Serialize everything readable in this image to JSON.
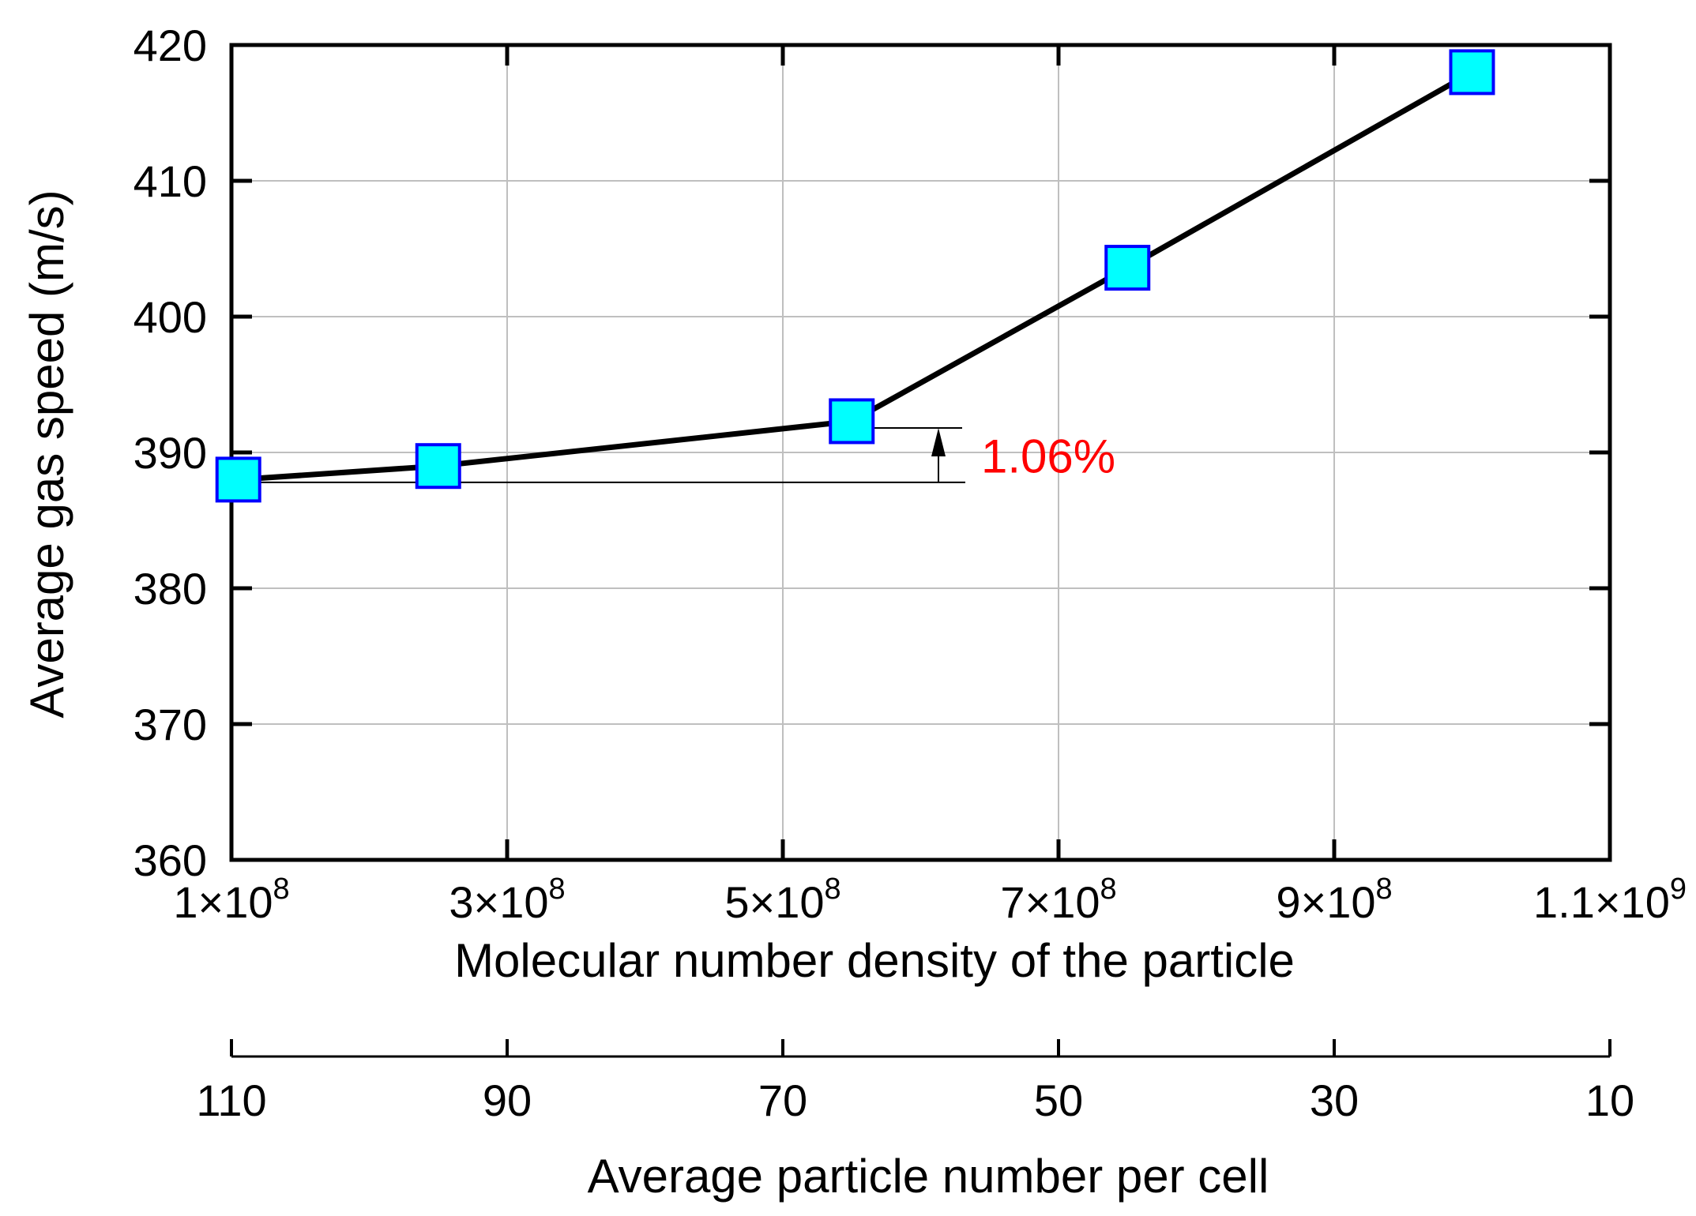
{
  "chart_data": {
    "type": "line",
    "title": "",
    "xlabel": "Molecular number density of the particle",
    "ylabel": "Average gas speed (m/s)",
    "secondary_xlabel": "Average particle number per cell",
    "xlim": [
      100000000,
      1100000000
    ],
    "ylim": [
      360,
      420
    ],
    "grid": true,
    "x_ticks": [
      100000000,
      300000000,
      500000000,
      700000000,
      900000000,
      1100000000
    ],
    "x_tick_labels": [
      {
        "mantissa": "1×10",
        "exp": "8"
      },
      {
        "mantissa": "3×10",
        "exp": "8"
      },
      {
        "mantissa": "5×10",
        "exp": "8"
      },
      {
        "mantissa": "7×10",
        "exp": "8"
      },
      {
        "mantissa": "9×10",
        "exp": "8"
      },
      {
        "mantissa": "1.1×10",
        "exp": "9"
      }
    ],
    "y_ticks": [
      360,
      370,
      380,
      390,
      400,
      410,
      420
    ],
    "y_tick_labels": [
      "360",
      "370",
      "380",
      "390",
      "400",
      "410",
      "420"
    ],
    "secondary_x_ticks": [
      110,
      90,
      70,
      50,
      30,
      10
    ],
    "secondary_x_tick_labels": [
      "110",
      "90",
      "70",
      "50",
      "30",
      "10"
    ],
    "series": [
      {
        "name": "Average gas speed",
        "x": [
          105000000,
          250000000,
          550000000,
          750000000,
          1000000000
        ],
        "y": [
          388.0,
          389.0,
          392.3,
          403.6,
          418.0
        ],
        "color": "#000000",
        "marker": "square",
        "marker_fill": "#00ffff",
        "marker_edge": "#0000ff"
      }
    ],
    "annotation": {
      "text": "1.06%",
      "color": "#ff0000",
      "from_y": 387.8,
      "to_y": 391.8
    }
  }
}
